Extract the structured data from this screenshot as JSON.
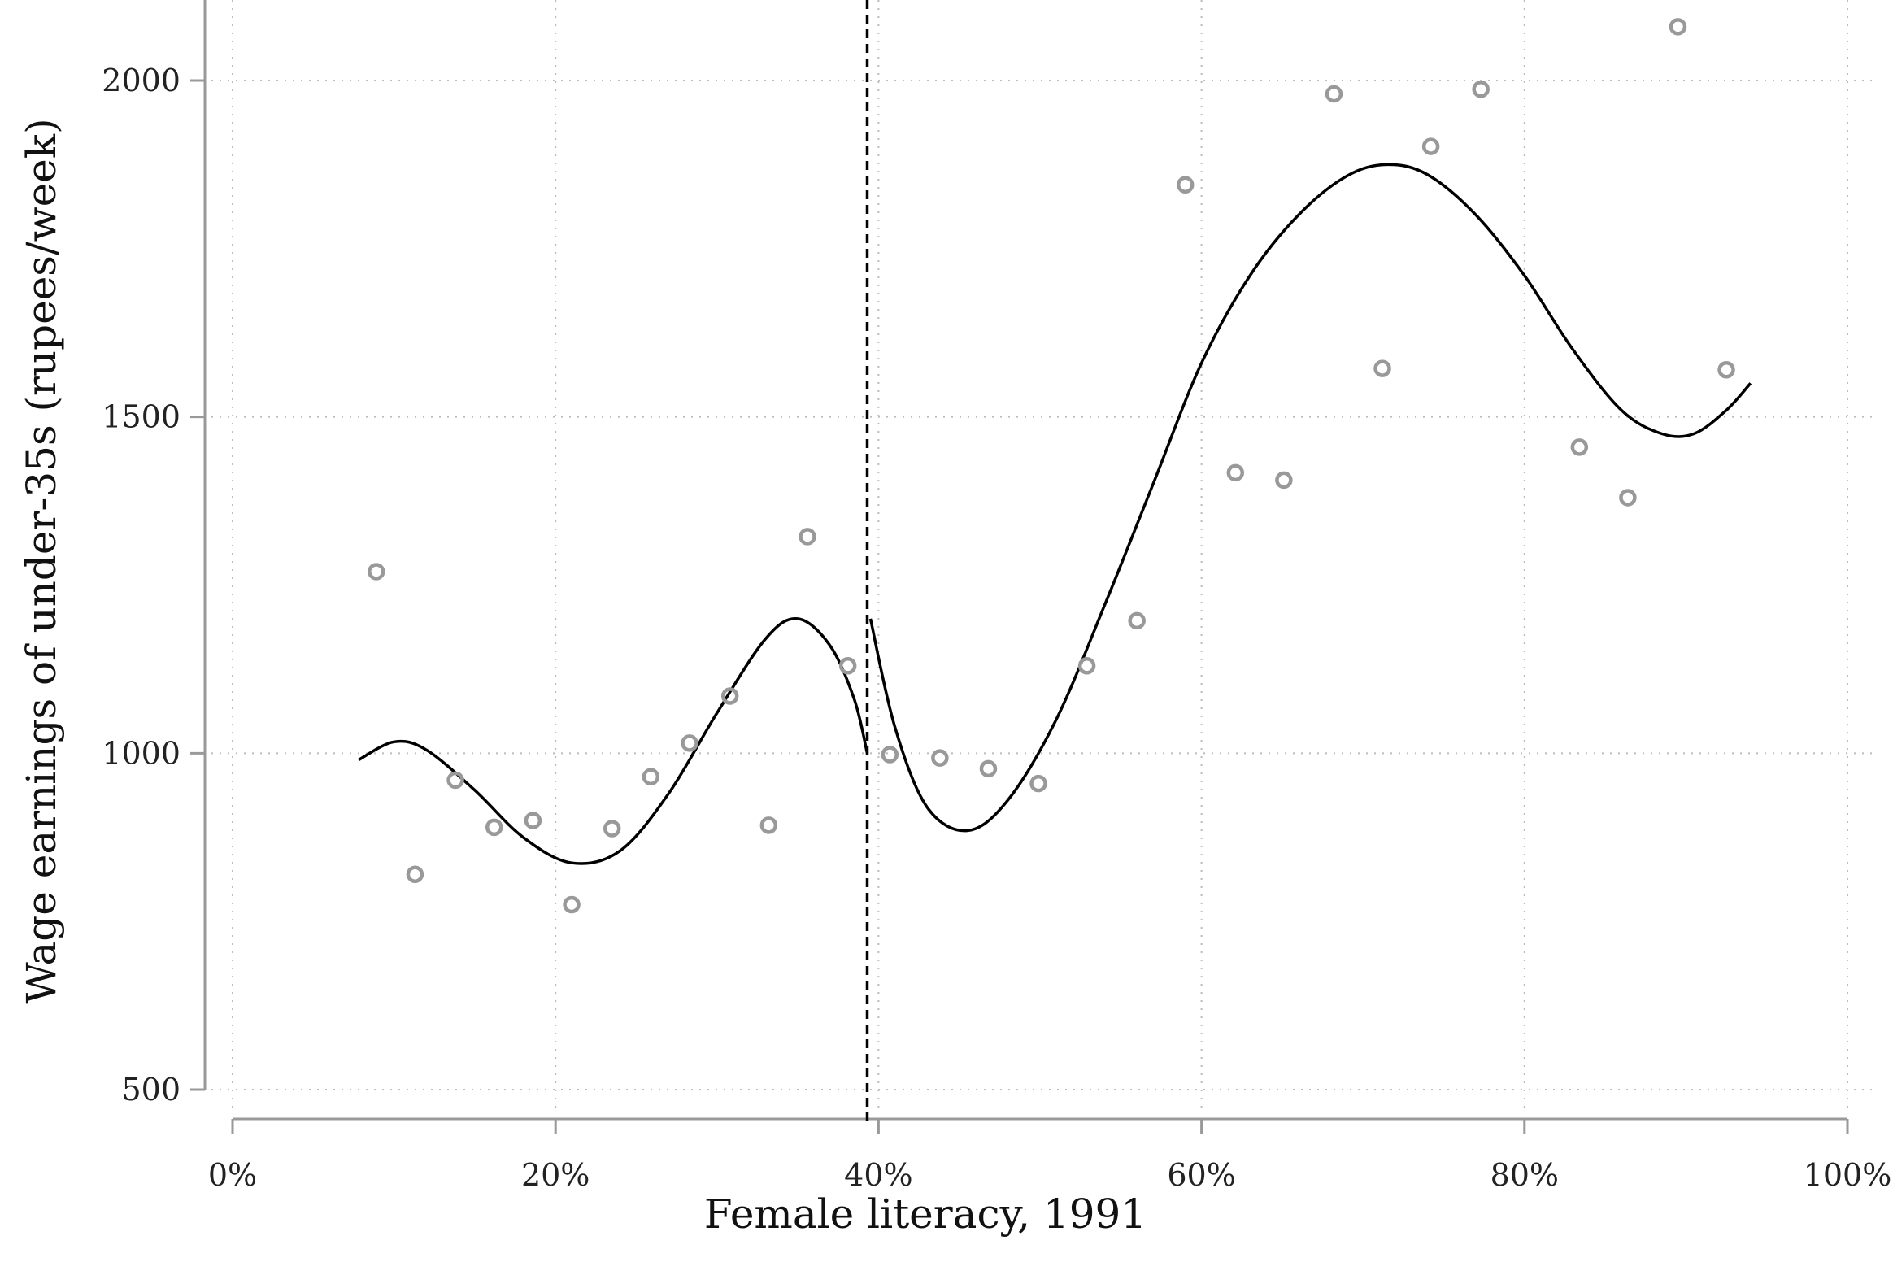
{
  "chart_data": {
    "type": "scatter",
    "title": "",
    "xlabel": "Female literacy, 1991",
    "ylabel": "Wage earnings of under-35s (rupees/week)",
    "xlim": [
      0,
      100
    ],
    "ylim": [
      500,
      2000
    ],
    "x_ticks": [
      0,
      20,
      40,
      60,
      80,
      100
    ],
    "x_tick_labels": [
      "0%",
      "20%",
      "40%",
      "60%",
      "80%",
      "100%"
    ],
    "y_ticks": [
      500,
      1000,
      1500,
      2000
    ],
    "y_tick_labels": [
      "500",
      "1000",
      "1500",
      "2000"
    ],
    "grid": true,
    "legend": "none",
    "cutoff_x": 39.3,
    "colors": {
      "points": "#999999",
      "fit_line": "#000000",
      "cutoff_line": "#000000",
      "grid": "#bbbbbb",
      "axis": "#999999"
    },
    "series": [
      {
        "type": "scatter",
        "x": [
          8.9,
          11.3,
          13.8,
          16.2,
          18.6,
          21.0,
          23.5,
          25.9,
          28.3,
          30.8,
          33.2,
          35.6,
          38.1,
          40.7,
          43.8,
          46.8,
          49.9,
          52.9,
          56.0,
          59.0,
          62.1,
          65.1,
          68.2,
          71.2,
          74.2,
          77.3,
          83.4,
          86.4,
          89.5,
          92.5
        ],
        "y": [
          1270,
          820,
          960,
          890,
          900,
          775,
          888,
          965,
          1015,
          1085,
          893,
          1322,
          1130,
          998,
          993,
          977,
          955,
          1130,
          1197,
          1845,
          1417,
          1406,
          1980,
          1572,
          1902,
          1987,
          1455,
          1380,
          2080,
          1570
        ]
      },
      {
        "type": "line",
        "segment": "left-fit",
        "x": [
          7.8,
          10.0,
          12.0,
          15.0,
          18.0,
          21.0,
          24.0,
          27.0,
          30.0,
          33.0,
          35.0,
          37.0,
          38.5,
          39.3
        ],
        "y": [
          990,
          1017,
          1005,
          945,
          875,
          837,
          855,
          940,
          1060,
          1170,
          1200,
          1160,
          1080,
          1000
        ]
      },
      {
        "type": "line",
        "segment": "right-fit",
        "x": [
          39.5,
          41.0,
          43.0,
          45.5,
          48.0,
          51.0,
          54.0,
          57.0,
          60.0,
          63.0,
          66.0,
          69.0,
          71.5,
          74.0,
          77.0,
          80.0,
          83.0,
          86.0,
          88.5,
          90.5,
          92.5,
          94.0
        ],
        "y": [
          1200,
          1040,
          920,
          885,
          930,
          1050,
          1220,
          1400,
          1580,
          1710,
          1800,
          1858,
          1875,
          1860,
          1800,
          1710,
          1600,
          1510,
          1475,
          1475,
          1510,
          1550
        ]
      }
    ]
  }
}
